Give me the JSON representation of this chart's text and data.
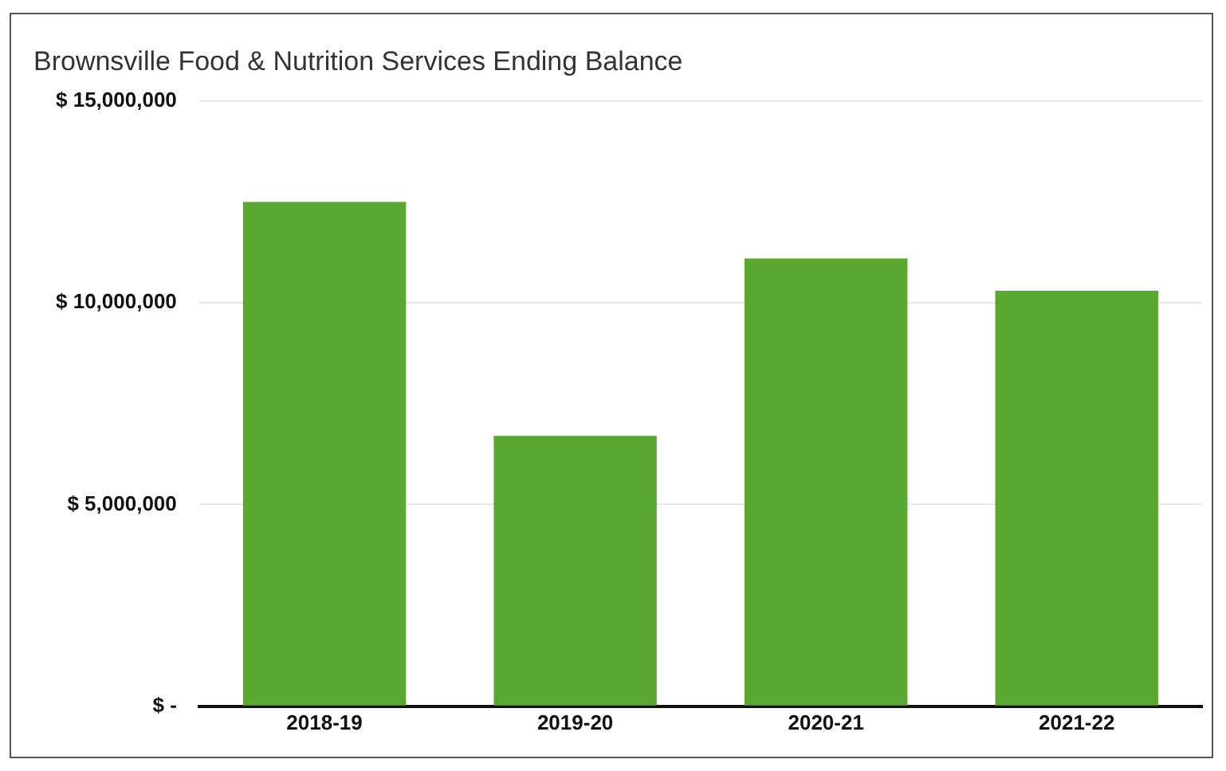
{
  "chart_data": {
    "type": "bar",
    "title": "Brownsville Food & Nutrition Services Ending Balance",
    "categories": [
      "2018-19",
      "2019-20",
      "2020-21",
      "2021-22"
    ],
    "values": [
      12500000,
      6700000,
      11100000,
      10300000
    ],
    "color": "#5aa832",
    "ylim": [
      0,
      15000000
    ],
    "yticks": [
      {
        "value": 0,
        "label": "$ -"
      },
      {
        "value": 5000000,
        "label": "$ 5,000,000"
      },
      {
        "value": 10000000,
        "label": "$ 10,000,000"
      },
      {
        "value": 15000000,
        "label": "$ 15,000,000"
      }
    ],
    "grid": "y",
    "legend": false
  }
}
